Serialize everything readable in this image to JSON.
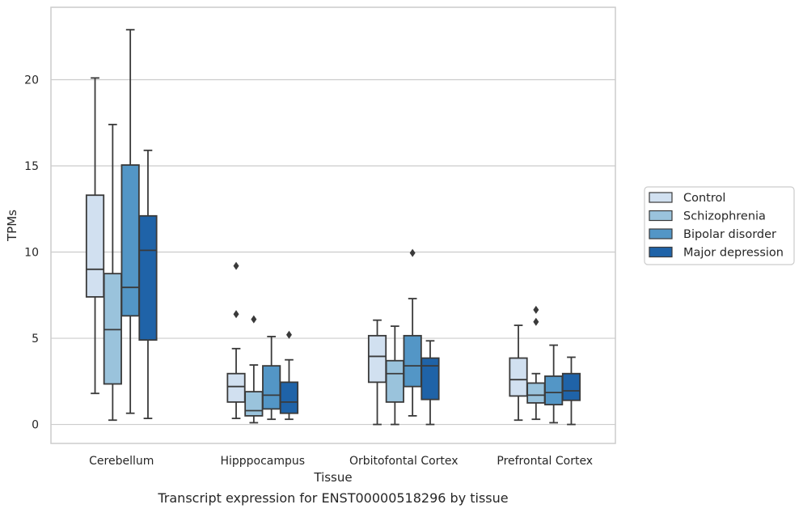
{
  "chart_data": {
    "type": "box",
    "caption": "Transcript expression for ENST00000518296 by tissue",
    "xlabel": "Tissue",
    "ylabel": "TPMs",
    "ylim": [
      -1.1,
      24.2
    ],
    "yticks": [
      0,
      5,
      10,
      15,
      20
    ],
    "grid": "horizontal",
    "legend_position": "right",
    "categories": [
      "Cerebellum",
      "Hipppocampus",
      "Orbitofontal Cortex",
      "Prefrontal Cortex"
    ],
    "series": [
      {
        "name": "Control",
        "color": "#d1e0f0",
        "boxes": [
          {
            "whislo": 1.8,
            "q1": 7.4,
            "med": 9.0,
            "q3": 13.3,
            "whishi": 20.1,
            "fliers": []
          },
          {
            "whislo": 0.35,
            "q1": 1.3,
            "med": 2.2,
            "q3": 2.95,
            "whishi": 4.4,
            "fliers": [
              6.4,
              9.2
            ]
          },
          {
            "whislo": 0.0,
            "q1": 2.45,
            "med": 3.95,
            "q3": 5.15,
            "whishi": 6.05,
            "fliers": []
          },
          {
            "whislo": 0.25,
            "q1": 1.65,
            "med": 2.6,
            "q3": 3.85,
            "whishi": 5.75,
            "fliers": []
          }
        ]
      },
      {
        "name": "Schizophrenia",
        "color": "#9ac3dc",
        "boxes": [
          {
            "whislo": 0.25,
            "q1": 2.35,
            "med": 5.5,
            "q3": 8.75,
            "whishi": 17.4,
            "fliers": []
          },
          {
            "whislo": 0.1,
            "q1": 0.5,
            "med": 0.8,
            "q3": 1.9,
            "whishi": 3.45,
            "fliers": [
              6.1
            ]
          },
          {
            "whislo": 0.0,
            "q1": 1.3,
            "med": 2.95,
            "q3": 3.7,
            "whishi": 5.7,
            "fliers": []
          },
          {
            "whislo": 0.3,
            "q1": 1.25,
            "med": 1.7,
            "q3": 2.4,
            "whishi": 2.95,
            "fliers": [
              5.95,
              6.65
            ]
          }
        ]
      },
      {
        "name": "Bipolar disorder",
        "color": "#5396c6",
        "boxes": [
          {
            "whislo": 0.65,
            "q1": 6.3,
            "med": 7.95,
            "q3": 15.05,
            "whishi": 22.9,
            "fliers": []
          },
          {
            "whislo": 0.3,
            "q1": 0.9,
            "med": 1.7,
            "q3": 3.4,
            "whishi": 5.1,
            "fliers": []
          },
          {
            "whislo": 0.5,
            "q1": 2.2,
            "med": 3.4,
            "q3": 5.15,
            "whishi": 7.3,
            "fliers": [
              9.95
            ]
          },
          {
            "whislo": 0.1,
            "q1": 1.15,
            "med": 1.85,
            "q3": 2.8,
            "whishi": 4.6,
            "fliers": []
          }
        ]
      },
      {
        "name": "Major depression",
        "color": "#1f63a8",
        "boxes": [
          {
            "whislo": 0.35,
            "q1": 4.9,
            "med": 10.1,
            "q3": 12.1,
            "whishi": 15.9,
            "fliers": []
          },
          {
            "whislo": 0.3,
            "q1": 0.65,
            "med": 1.3,
            "q3": 2.45,
            "whishi": 3.75,
            "fliers": [
              5.2
            ]
          },
          {
            "whislo": 0.0,
            "q1": 1.45,
            "med": 3.4,
            "q3": 3.85,
            "whishi": 4.85,
            "fliers": []
          },
          {
            "whislo": 0.0,
            "q1": 1.4,
            "med": 1.95,
            "q3": 2.95,
            "whishi": 3.9,
            "fliers": []
          }
        ]
      }
    ]
  }
}
